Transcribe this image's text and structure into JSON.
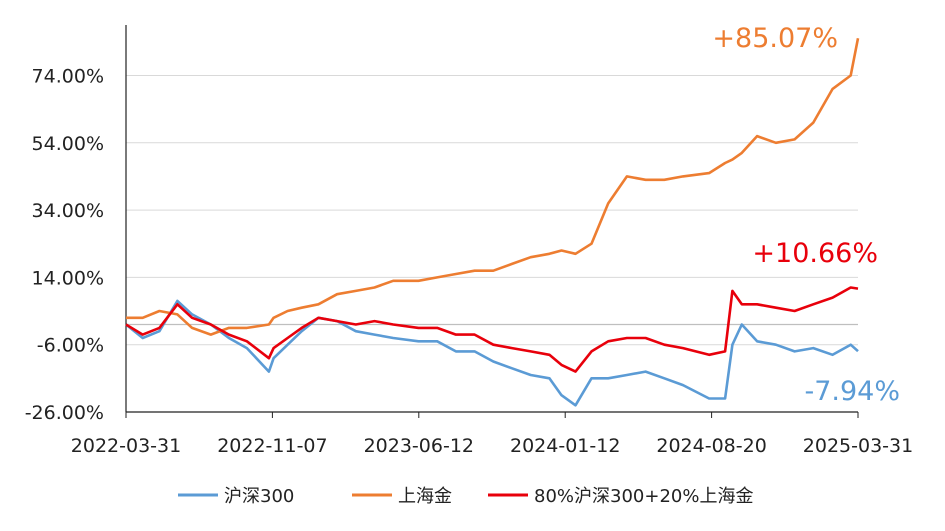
{
  "chart_data": {
    "type": "line",
    "title": "",
    "xlabel": "",
    "ylabel": "",
    "ylim": [
      -26,
      89
    ],
    "y_ticks": [
      "74.00%",
      "54.00%",
      "34.00%",
      "14.00%",
      "-6.00%",
      "-26.00%"
    ],
    "y_tick_values": [
      74,
      54,
      34,
      14,
      -6,
      -26
    ],
    "x_ticks": [
      "2022-03-31",
      "2022-11-07",
      "2023-06-12",
      "2024-01-12",
      "2024-08-20",
      "2025-03-31"
    ],
    "x_range": [
      "2022-03-31",
      "2025-03-31"
    ],
    "grid": "horizontal",
    "legend_position": "bottom",
    "end_labels": [
      "-7.94%",
      "+85.07%",
      "+10.66%"
    ],
    "series": [
      {
        "name": "沪深300",
        "color": "#5b9bd5",
        "x": [
          "2022-03-31",
          "2022-04-25",
          "2022-05-20",
          "2022-06-16",
          "2022-07-08",
          "2022-08-05",
          "2022-09-01",
          "2022-09-28",
          "2022-10-31",
          "2022-11-07",
          "2022-11-28",
          "2022-12-19",
          "2023-01-13",
          "2023-02-10",
          "2023-03-10",
          "2023-04-07",
          "2023-05-05",
          "2023-06-12",
          "2023-07-10",
          "2023-08-07",
          "2023-09-04",
          "2023-10-02",
          "2023-10-30",
          "2023-11-27",
          "2023-12-25",
          "2024-01-12",
          "2024-02-02",
          "2024-02-26",
          "2024-03-22",
          "2024-04-19",
          "2024-05-17",
          "2024-06-14",
          "2024-07-12",
          "2024-08-20",
          "2024-09-13",
          "2024-09-24",
          "2024-10-08",
          "2024-10-31",
          "2024-11-28",
          "2024-12-26",
          "2025-01-23",
          "2025-02-21",
          "2025-03-20",
          "2025-03-31"
        ],
        "values": [
          0,
          -4,
          -2,
          7,
          3,
          0,
          -4,
          -7,
          -14,
          -10,
          -6,
          -2,
          2,
          1,
          -2,
          -3,
          -4,
          -5,
          -5,
          -8,
          -8,
          -11,
          -13,
          -15,
          -16,
          -21,
          -24,
          -16,
          -16,
          -15,
          -14,
          -16,
          -18,
          -22,
          -22,
          -6,
          0,
          -5,
          -6,
          -8,
          -7,
          -9,
          -6,
          -7.94
        ]
      },
      {
        "name": "上海金",
        "color": "#ed7d31",
        "x": [
          "2022-03-31",
          "2022-04-25",
          "2022-05-20",
          "2022-06-16",
          "2022-07-08",
          "2022-08-05",
          "2022-09-01",
          "2022-09-28",
          "2022-10-31",
          "2022-11-07",
          "2022-11-28",
          "2022-12-19",
          "2023-01-13",
          "2023-02-10",
          "2023-03-10",
          "2023-04-07",
          "2023-05-05",
          "2023-06-12",
          "2023-07-10",
          "2023-08-07",
          "2023-09-04",
          "2023-10-02",
          "2023-10-30",
          "2023-11-27",
          "2023-12-25",
          "2024-01-12",
          "2024-02-02",
          "2024-02-26",
          "2024-03-22",
          "2024-04-19",
          "2024-05-17",
          "2024-06-14",
          "2024-07-12",
          "2024-08-20",
          "2024-09-13",
          "2024-09-24",
          "2024-10-08",
          "2024-10-31",
          "2024-11-28",
          "2024-12-26",
          "2025-01-23",
          "2025-02-21",
          "2025-03-20",
          "2025-03-31"
        ],
        "values": [
          2,
          2,
          4,
          3,
          -1,
          -3,
          -1,
          -1,
          0,
          2,
          4,
          5,
          6,
          9,
          10,
          11,
          13,
          13,
          14,
          15,
          16,
          16,
          18,
          20,
          21,
          22,
          21,
          24,
          36,
          44,
          43,
          43,
          44,
          45,
          48,
          49,
          51,
          56,
          54,
          55,
          60,
          70,
          74,
          85.07
        ]
      },
      {
        "name": "80%沪深300+20%上海金",
        "color": "#e8000b",
        "x": [
          "2022-03-31",
          "2022-04-25",
          "2022-05-20",
          "2022-06-16",
          "2022-07-08",
          "2022-08-05",
          "2022-09-01",
          "2022-09-28",
          "2022-10-31",
          "2022-11-07",
          "2022-11-28",
          "2022-12-19",
          "2023-01-13",
          "2023-02-10",
          "2023-03-10",
          "2023-04-07",
          "2023-05-05",
          "2023-06-12",
          "2023-07-10",
          "2023-08-07",
          "2023-09-04",
          "2023-10-02",
          "2023-10-30",
          "2023-11-27",
          "2023-12-25",
          "2024-01-12",
          "2024-02-02",
          "2024-02-26",
          "2024-03-22",
          "2024-04-19",
          "2024-05-17",
          "2024-06-14",
          "2024-07-12",
          "2024-08-20",
          "2024-09-13",
          "2024-09-24",
          "2024-10-08",
          "2024-10-31",
          "2024-11-28",
          "2024-12-26",
          "2025-01-23",
          "2025-02-21",
          "2025-03-20",
          "2025-03-31"
        ],
        "values": [
          0,
          -3,
          -1,
          6,
          2,
          0,
          -3,
          -5,
          -10,
          -7,
          -4,
          -1,
          2,
          1,
          0,
          1,
          0,
          -1,
          -1,
          -3,
          -3,
          -6,
          -7,
          -8,
          -9,
          -12,
          -14,
          -8,
          -5,
          -4,
          -4,
          -6,
          -7,
          -9,
          -8,
          10,
          6,
          6,
          5,
          4,
          6,
          8,
          11,
          10.66
        ]
      }
    ]
  }
}
